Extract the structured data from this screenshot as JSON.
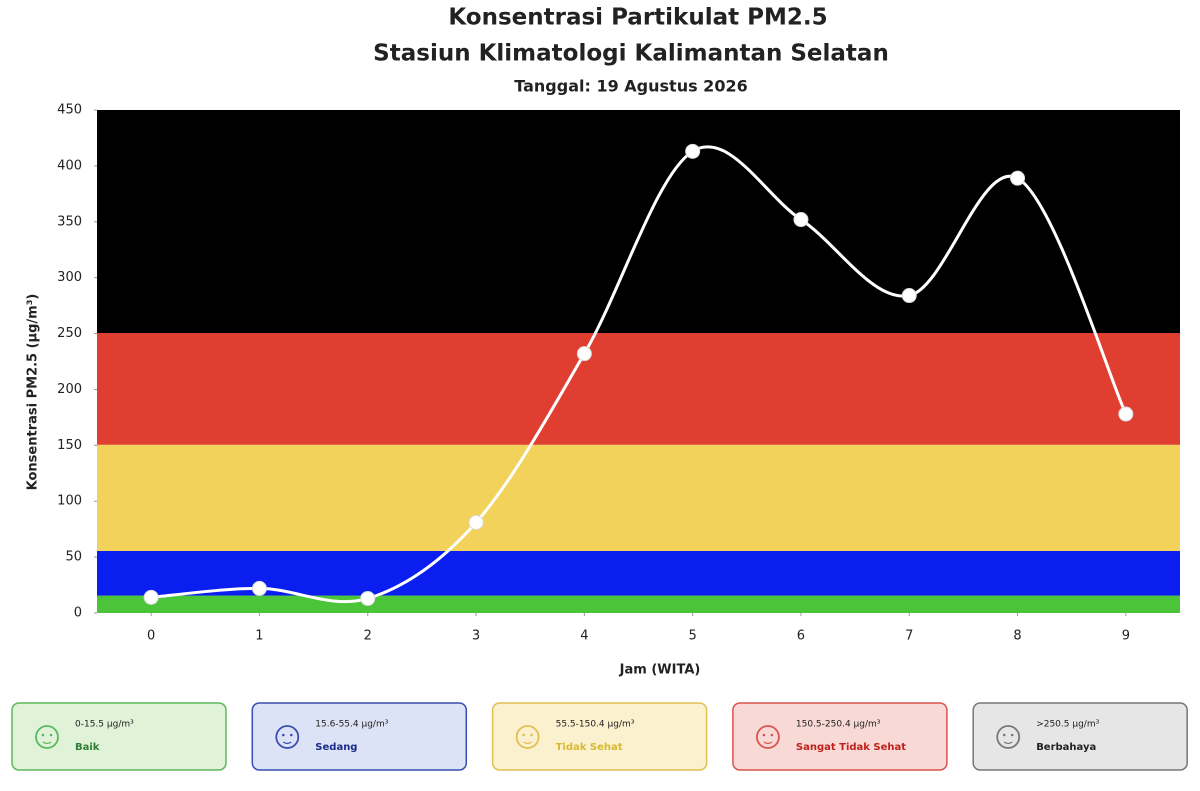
{
  "chart_data": {
    "type": "line",
    "title": "Konsentrasi Partikulat PM2.5",
    "subtitle": "Stasiun Klimatologi Kalimantan Selatan",
    "date_label": "Tanggal: 19 Agustus 2026",
    "x_label": "Jam (WITA)",
    "y_label": "Konsentrasi PM2.5 (μg/m³)",
    "x": [
      0,
      1,
      2,
      3,
      4,
      5,
      6,
      7,
      8,
      9
    ],
    "series": [
      {
        "color": "#ffffff",
        "values": [
          14,
          22,
          13,
          81,
          232,
          413,
          352,
          284,
          389,
          178
        ]
      }
    ],
    "xlim": [
      -0.5,
      9.5
    ],
    "xticks": [
      0,
      1,
      2,
      3,
      4,
      5,
      6,
      7,
      8,
      9
    ],
    "ylim": [
      0,
      450
    ],
    "yticks": [
      0,
      50,
      100,
      150,
      200,
      250,
      300,
      350,
      400,
      450
    ],
    "bands": [
      {
        "from": 0,
        "color": "#4cc43a",
        "range": "0-15.5 μg/m³",
        "name": "Baik",
        "box": "#e0f2d8",
        "edge": "#5cb85c",
        "text": "#2e7d32"
      },
      {
        "from": 15.6,
        "color": "#0a1ef0",
        "range": "15.6-55.4 μg/m³",
        "name": "Sedang",
        "box": "#dde3f7",
        "edge": "#3a4db0",
        "text": "#1a2a8a"
      },
      {
        "from": 55.5,
        "color": "#f2d25a",
        "range": "55.5-150.4 μg/m³",
        "name": "Tidak Sehat",
        "box": "#fbf1cf",
        "edge": "#e0c050",
        "text": "#d9b832"
      },
      {
        "from": 150.5,
        "color": "#e03e30",
        "range": "150.5-250.4 μg/m³",
        "name": "Sangat Tidak Sehat",
        "box": "#f8d9d6",
        "edge": "#d9534f",
        "text": "#c0201a"
      },
      {
        "from": 250.5,
        "color": "#000000",
        "range": ">250.5 μg/m³",
        "name": "Berbahaya",
        "box": "#e6e6e6",
        "edge": "#777777",
        "text": "#222222"
      }
    ]
  }
}
